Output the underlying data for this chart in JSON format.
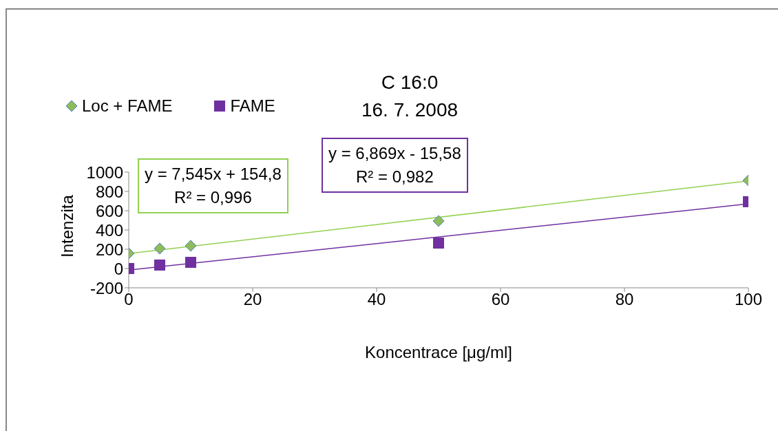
{
  "chart_data": {
    "type": "scatter",
    "title": "C 16:0",
    "subtitle": "16. 7. 2008",
    "xlabel": "Koncentrace [μg/ml]",
    "ylabel": "Intenzita",
    "xlim": [
      0,
      100
    ],
    "xticks": [
      0,
      20,
      40,
      60,
      80,
      100
    ],
    "ylim": [
      -200,
      1000
    ],
    "yticks": [
      -200,
      0,
      200,
      400,
      600,
      800,
      1000
    ],
    "legend": "top left",
    "series": [
      {
        "name": "Loc + FAME",
        "type": "scatter",
        "marker": "diamond",
        "color": "#8fbc5a",
        "x": [
          0,
          5,
          10,
          50,
          100
        ],
        "values": [
          157,
          207,
          236,
          493,
          914
        ]
      },
      {
        "name": "FAME",
        "type": "scatter",
        "marker": "square",
        "color": "#7030a0",
        "x": [
          0,
          5,
          10,
          50,
          100
        ],
        "values": [
          0,
          36,
          64,
          264,
          693
        ]
      },
      {
        "type": "line",
        "marker": "none",
        "color": "#92d050",
        "x": [
          0,
          100
        ],
        "values": [
          155,
          909
        ]
      },
      {
        "type": "line",
        "marker": "none",
        "color": "#7030a0",
        "x": [
          0,
          100
        ],
        "values": [
          -16,
          671
        ]
      }
    ],
    "annotations": [
      "y = 7,545x + 154,8",
      "R² = 0,996",
      "y = 6,869x - 15,58",
      "R² = 0,982"
    ]
  }
}
